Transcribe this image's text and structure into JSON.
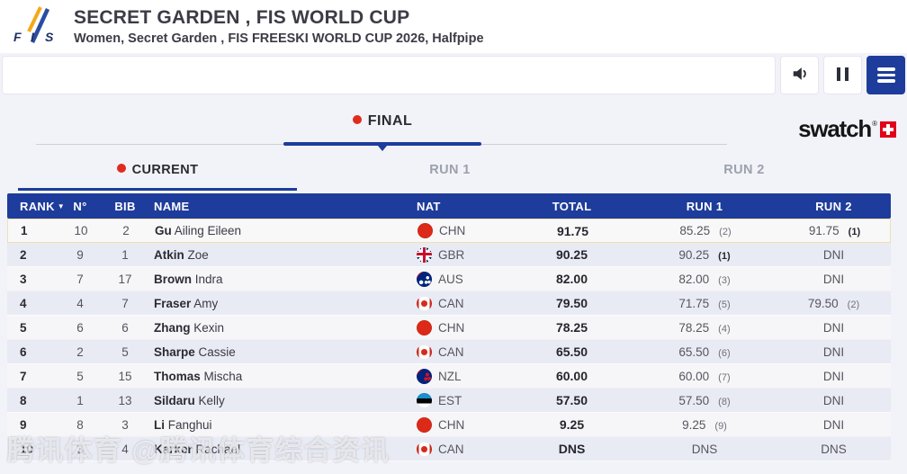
{
  "header": {
    "title": "SECRET GARDEN , FIS WORLD CUP",
    "subtitle": "Women, Secret Garden , FIS FREESKI WORLD CUP 2026, Halfpipe",
    "logo": {
      "letters": [
        "F",
        "I",
        "S"
      ]
    }
  },
  "toolbar": {
    "buttons": [
      {
        "icon": "speaker-icon"
      },
      {
        "icon": "pause-icon"
      },
      {
        "icon": "menu-icon"
      }
    ]
  },
  "tabs": {
    "heat_label": "FINAL",
    "runs": [
      {
        "label": "CURRENT",
        "active": true
      },
      {
        "label": "RUN 1",
        "active": false
      },
      {
        "label": "RUN 2",
        "active": false
      }
    ]
  },
  "sponsor": {
    "name": "swatch",
    "cross_color": "#e2001a"
  },
  "colors": {
    "header_blue": "#1e3c9b",
    "live_red": "#de2c1e",
    "highlight_border": "#eee0ae",
    "row_alt": "#e9ebf4"
  },
  "table": {
    "columns": [
      "RANK",
      "N°",
      "BIB",
      "NAME",
      "NAT",
      "TOTAL",
      "RUN 1",
      "RUN 2"
    ],
    "rows": [
      {
        "rank": "1",
        "num": "10",
        "bib": "2",
        "last": "Gu",
        "first": "Ailing Eileen",
        "nat": "CHN",
        "total": "91.75",
        "run1": "85.25",
        "run1_pos": "(2)",
        "run1_pos_bold": false,
        "run2": "91.75",
        "run2_pos": "(1)",
        "run2_pos_bold": true,
        "highlight": true
      },
      {
        "rank": "2",
        "num": "9",
        "bib": "1",
        "last": "Atkin",
        "first": "Zoe",
        "nat": "GBR",
        "total": "90.25",
        "run1": "90.25",
        "run1_pos": "(1)",
        "run1_pos_bold": true,
        "run2": "DNI"
      },
      {
        "rank": "3",
        "num": "7",
        "bib": "17",
        "last": "Brown",
        "first": "Indra",
        "nat": "AUS",
        "total": "82.00",
        "run1": "82.00",
        "run1_pos": "(3)",
        "run1_pos_bold": false,
        "run2": "DNI"
      },
      {
        "rank": "4",
        "num": "4",
        "bib": "7",
        "last": "Fraser",
        "first": "Amy",
        "nat": "CAN",
        "total": "79.50",
        "run1": "71.75",
        "run1_pos": "(5)",
        "run1_pos_bold": false,
        "run2": "79.50",
        "run2_pos": "(2)",
        "run2_pos_bold": false
      },
      {
        "rank": "5",
        "num": "6",
        "bib": "6",
        "last": "Zhang",
        "first": "Kexin",
        "nat": "CHN",
        "total": "78.25",
        "run1": "78.25",
        "run1_pos": "(4)",
        "run1_pos_bold": false,
        "run2": "DNI"
      },
      {
        "rank": "6",
        "num": "2",
        "bib": "5",
        "last": "Sharpe",
        "first": "Cassie",
        "nat": "CAN",
        "total": "65.50",
        "run1": "65.50",
        "run1_pos": "(6)",
        "run1_pos_bold": false,
        "run2": "DNI"
      },
      {
        "rank": "7",
        "num": "5",
        "bib": "15",
        "last": "Thomas",
        "first": "Mischa",
        "nat": "NZL",
        "total": "60.00",
        "run1": "60.00",
        "run1_pos": "(7)",
        "run1_pos_bold": false,
        "run2": "DNI"
      },
      {
        "rank": "8",
        "num": "1",
        "bib": "13",
        "last": "Sildaru",
        "first": "Kelly",
        "nat": "EST",
        "total": "57.50",
        "run1": "57.50",
        "run1_pos": "(8)",
        "run1_pos_bold": false,
        "run2": "DNI"
      },
      {
        "rank": "9",
        "num": "8",
        "bib": "3",
        "last": "Li",
        "first": "Fanghui",
        "nat": "CHN",
        "total": "9.25",
        "run1": "9.25",
        "run1_pos": "(9)",
        "run1_pos_bold": false,
        "run2": "DNI"
      },
      {
        "rank": "10",
        "num": "3",
        "bib": "4",
        "last": "Karker",
        "first": "Rachael",
        "nat": "CAN",
        "total": "DNS",
        "run1": "DNS",
        "run2": "DNS"
      }
    ]
  },
  "watermark": "腾讯体育 @腾讯体育综合资讯"
}
